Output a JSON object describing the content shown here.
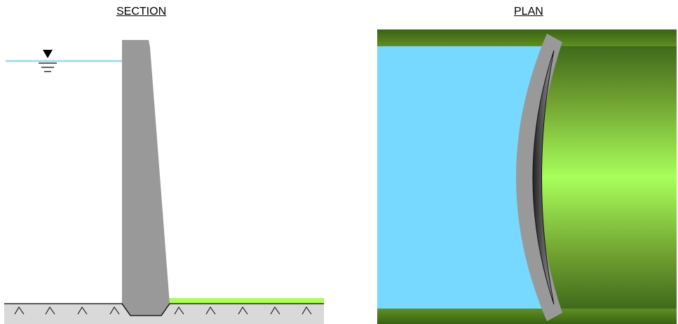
{
  "section": {
    "title": "SECTION"
  },
  "plan": {
    "title": "PLAN"
  },
  "colors": {
    "water": "#77d9ff",
    "water_line": "#9ad8f0",
    "concrete": "#999999",
    "ground": "#d9d9d9",
    "grass": "#a8ff5a",
    "grass_dark": "#3f6f1a",
    "bank": "#4e7a1c"
  },
  "icons": [
    "water-level-symbol",
    "ground-hatch"
  ]
}
